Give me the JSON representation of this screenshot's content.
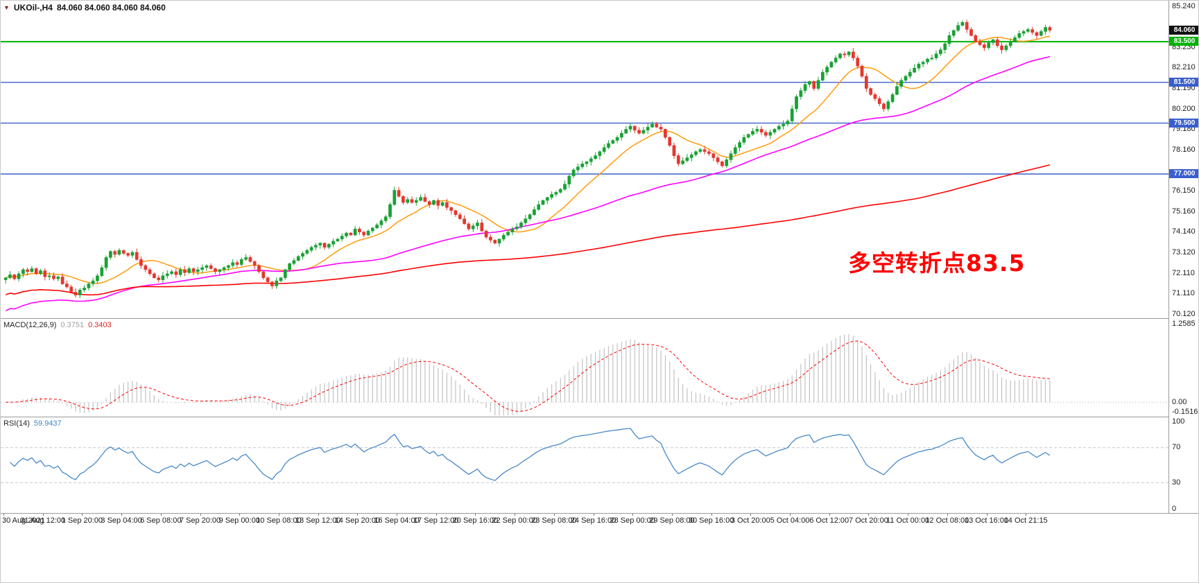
{
  "window": {
    "title_symbol": "UKOil-,H4",
    "title_ohlc": "84.060 84.060 84.060 84.060"
  },
  "annotation": {
    "text": "多空转折点83.5",
    "color": "#FF0000"
  },
  "time_axis": {
    "labels": [
      "30 Aug 2021",
      "31 Aug 12:00",
      "1 Sep 20:00",
      "3 Sep 04:00",
      "6 Sep 08:00",
      "7 Sep 20:00",
      "9 Sep 00:00",
      "10 Sep 08:00",
      "13 Sep 12:00",
      "14 Sep 20:00",
      "16 Sep 04:00",
      "17 Sep 12:00",
      "20 Sep 16:00",
      "22 Sep 00:00",
      "23 Sep 08:00",
      "24 Sep 16:00",
      "28 Sep 00:00",
      "29 Sep 08:00",
      "30 Sep 16:00",
      "3 Oct 20:00",
      "5 Oct 04:00",
      "6 Oct 12:00",
      "7 Oct 20:00",
      "11 Oct 00:00",
      "12 Oct 08:00",
      "13 Oct 16:00",
      "14 Oct 21:15"
    ]
  },
  "chart_data": {
    "type": "candlestick",
    "symbol": "UKOil-",
    "timeframe": "H4",
    "ohlc_current": {
      "open": "84.060",
      "high": "84.060",
      "low": "84.060",
      "close": "84.060"
    },
    "ylim": [
      70.12,
      85.24
    ],
    "y_ticks": [
      "85.240",
      "83.230",
      "82.210",
      "81.190",
      "80.200",
      "79.180",
      "78.160",
      "76.150",
      "75.160",
      "74.140",
      "73.120",
      "72.110",
      "71.110",
      "70.120"
    ],
    "current_price": 84.06,
    "current_price_label": "84.060",
    "current_price_badge_color": "#111111",
    "hlines": [
      {
        "price": 83.5,
        "label": "83.500",
        "color": "#00B200",
        "width": 2
      },
      {
        "price": 81.5,
        "label": "81.500",
        "color": "#3A5FCD",
        "width": 1.4
      },
      {
        "price": 79.5,
        "label": "79.500",
        "color": "#3A5FCD",
        "width": 1.4
      },
      {
        "price": 77.0,
        "label": "77.000",
        "color": "#3A5FCD",
        "width": 1.4
      }
    ],
    "candle_up": "#1AA135",
    "candle_down": "#E5372E",
    "open_first": 71.8,
    "closes": [
      71.9,
      72.05,
      71.85,
      72.1,
      72.3,
      72.2,
      72.35,
      72.1,
      72.25,
      71.95,
      72.0,
      71.85,
      71.95,
      71.6,
      71.45,
      71.2,
      71.05,
      71.3,
      71.4,
      71.6,
      71.75,
      72.0,
      72.4,
      72.9,
      73.2,
      73.05,
      73.25,
      73.1,
      73.0,
      73.15,
      72.8,
      72.5,
      72.3,
      72.1,
      71.9,
      71.8,
      72.0,
      72.1,
      72.2,
      72.05,
      72.3,
      72.15,
      72.35,
      72.2,
      72.3,
      72.4,
      72.5,
      72.35,
      72.2,
      72.3,
      72.4,
      72.5,
      72.65,
      72.55,
      72.8,
      72.9,
      72.7,
      72.5,
      72.2,
      71.9,
      71.7,
      71.5,
      71.75,
      71.9,
      72.3,
      72.6,
      72.75,
      72.95,
      73.1,
      73.25,
      73.4,
      73.5,
      73.6,
      73.4,
      73.55,
      73.7,
      73.8,
      73.95,
      74.1,
      74.0,
      74.3,
      74.15,
      74.0,
      74.2,
      74.35,
      74.5,
      74.7,
      74.9,
      75.5,
      76.2,
      75.9,
      75.6,
      75.75,
      75.6,
      75.7,
      75.85,
      75.65,
      75.5,
      75.7,
      75.45,
      75.6,
      75.35,
      75.2,
      75.0,
      74.8,
      74.55,
      74.3,
      74.45,
      74.6,
      74.2,
      73.9,
      73.75,
      73.6,
      73.8,
      74.0,
      74.15,
      74.3,
      74.4,
      74.6,
      74.8,
      75.0,
      75.25,
      75.5,
      75.7,
      75.85,
      76.0,
      76.1,
      76.25,
      76.5,
      76.9,
      77.2,
      77.35,
      77.5,
      77.6,
      77.75,
      77.9,
      78.1,
      78.3,
      78.5,
      78.65,
      78.8,
      79.0,
      79.2,
      79.35,
      79.15,
      79.0,
      79.15,
      79.3,
      79.45,
      79.3,
      79.2,
      78.8,
      78.4,
      77.9,
      77.5,
      77.65,
      77.8,
      77.95,
      78.1,
      78.2,
      78.1,
      78.0,
      77.8,
      77.6,
      77.4,
      77.7,
      78.0,
      78.3,
      78.55,
      78.8,
      78.95,
      79.1,
      79.2,
      79.05,
      78.9,
      79.05,
      79.2,
      79.35,
      79.45,
      79.6,
      80.2,
      80.8,
      81.1,
      81.4,
      81.55,
      81.2,
      81.6,
      82.0,
      82.25,
      82.5,
      82.7,
      82.9,
      82.85,
      83.0,
      82.7,
      82.3,
      81.8,
      81.2,
      80.9,
      80.7,
      80.45,
      80.2,
      80.55,
      80.9,
      81.3,
      81.6,
      81.8,
      82.0,
      82.2,
      82.4,
      82.5,
      82.65,
      82.7,
      82.9,
      83.1,
      83.4,
      83.8,
      84.05,
      84.3,
      84.45,
      84.1,
      83.8,
      83.5,
      83.35,
      83.2,
      83.45,
      83.6,
      83.3,
      83.1,
      83.3,
      83.5,
      83.7,
      83.9,
      84.0,
      84.1,
      83.95,
      83.8,
      84.0,
      84.2,
      84.06
    ],
    "moving_averages": [
      {
        "period": 13,
        "color": "#FFA018"
      },
      {
        "period": 55,
        "color": "#FF00FF"
      },
      {
        "period": 210,
        "color": "#FF0000"
      }
    ],
    "subcharts": [
      {
        "type": "macd",
        "label": "MACD(12,26,9)",
        "params": [
          12,
          26,
          9
        ],
        "value_main": "0.3751",
        "value_signal": "0.3403",
        "ylim": [
          -0.1516,
          1.2585
        ],
        "y_ticks": [
          "1.2585",
          "0.00",
          "-0.1516"
        ],
        "histogram_color": "#C2C2C2",
        "signal_color": "#FF0000"
      },
      {
        "type": "rsi",
        "label": "RSI(14)",
        "period": 14,
        "value": "59.9437",
        "ylim": [
          0,
          100
        ],
        "y_ticks": [
          "100",
          "70",
          "30",
          "0"
        ],
        "levels": [
          70,
          30
        ],
        "line_color": "#4788C7",
        "level_color": "#C0C6CE"
      }
    ]
  }
}
